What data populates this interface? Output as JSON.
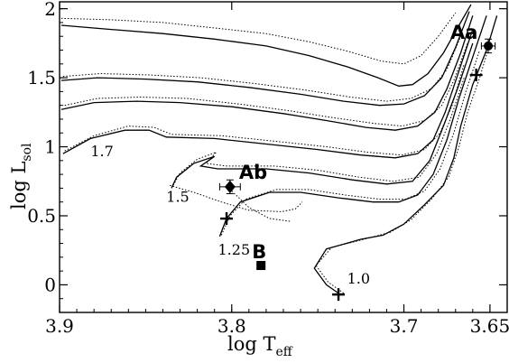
{
  "chart_data": {
    "type": "line",
    "title": "",
    "xlabel": {
      "main": "log T",
      "sub": "eff"
    },
    "ylabel": {
      "main": "log L",
      "sub": "sol"
    },
    "xlim": [
      3.9,
      3.64
    ],
    "ylim": [
      -0.2,
      2.05
    ],
    "x_ticks": [
      {
        "value": 3.9,
        "label": "3.9"
      },
      {
        "value": 3.8,
        "label": "3.8"
      },
      {
        "value": 3.7,
        "label": "3.7"
      },
      {
        "value": 3.65,
        "label": "3.65"
      }
    ],
    "y_ticks": [
      {
        "value": 0,
        "label": "0"
      },
      {
        "value": 0.5,
        "label": "0.5"
      },
      {
        "value": 1,
        "label": "1"
      },
      {
        "value": 1.5,
        "label": "1.5"
      },
      {
        "value": 2,
        "label": "2"
      }
    ],
    "grid": false,
    "tracks": [
      {
        "mass": "1.0",
        "style": "solid",
        "points": [
          [
            3.737,
            -0.07
          ],
          [
            3.745,
            0.0
          ],
          [
            3.752,
            0.12
          ],
          [
            3.745,
            0.26
          ],
          [
            3.725,
            0.33
          ],
          [
            3.712,
            0.36
          ],
          [
            3.7,
            0.44
          ],
          [
            3.688,
            0.58
          ],
          [
            3.677,
            0.72
          ],
          [
            3.671,
            0.92
          ],
          [
            3.667,
            1.15
          ],
          [
            3.66,
            1.45
          ],
          [
            3.652,
            1.7
          ],
          [
            3.646,
            1.95
          ]
        ]
      },
      {
        "mass": "1.0",
        "style": "dotted",
        "points": [
          [
            3.735,
            -0.06
          ],
          [
            3.744,
            0.02
          ],
          [
            3.751,
            0.14
          ],
          [
            3.742,
            0.27
          ],
          [
            3.72,
            0.34
          ],
          [
            3.708,
            0.38
          ],
          [
            3.696,
            0.47
          ],
          [
            3.684,
            0.62
          ],
          [
            3.674,
            0.78
          ],
          [
            3.668,
            1.0
          ],
          [
            3.663,
            1.25
          ],
          [
            3.656,
            1.5
          ],
          [
            3.65,
            1.75
          ]
        ]
      },
      {
        "mass": "1.25",
        "style": "solid",
        "points": [
          [
            3.807,
            0.35
          ],
          [
            3.803,
            0.48
          ],
          [
            3.795,
            0.6
          ],
          [
            3.778,
            0.67
          ],
          [
            3.76,
            0.67
          ],
          [
            3.738,
            0.63
          ],
          [
            3.718,
            0.6
          ],
          [
            3.703,
            0.6
          ],
          [
            3.692,
            0.65
          ],
          [
            3.683,
            0.8
          ],
          [
            3.675,
            1.05
          ],
          [
            3.668,
            1.35
          ],
          [
            3.66,
            1.65
          ],
          [
            3.652,
            1.95
          ]
        ]
      },
      {
        "mass": "1.25",
        "style": "dotted",
        "points": [
          [
            3.806,
            0.36
          ],
          [
            3.801,
            0.5
          ],
          [
            3.792,
            0.62
          ],
          [
            3.774,
            0.69
          ],
          [
            3.755,
            0.69
          ],
          [
            3.734,
            0.65
          ],
          [
            3.714,
            0.62
          ],
          [
            3.699,
            0.62
          ],
          [
            3.688,
            0.68
          ],
          [
            3.679,
            0.84
          ],
          [
            3.671,
            1.1
          ],
          [
            3.664,
            1.4
          ],
          [
            3.656,
            1.7
          ]
        ]
      },
      {
        "mass": "1.5",
        "style": "solid",
        "points": [
          [
            3.835,
            0.7
          ],
          [
            3.832,
            0.78
          ],
          [
            3.822,
            0.88
          ],
          [
            3.81,
            0.93
          ],
          [
            3.818,
            0.86
          ],
          [
            3.808,
            0.84
          ],
          [
            3.78,
            0.84
          ],
          [
            3.755,
            0.81
          ],
          [
            3.73,
            0.76
          ],
          [
            3.71,
            0.73
          ],
          [
            3.695,
            0.75
          ],
          [
            3.685,
            0.9
          ],
          [
            3.677,
            1.15
          ],
          [
            3.668,
            1.45
          ],
          [
            3.66,
            1.75
          ]
        ]
      },
      {
        "mass": "1.5",
        "style": "dotted",
        "points": [
          [
            3.834,
            0.72
          ],
          [
            3.83,
            0.81
          ],
          [
            3.82,
            0.91
          ],
          [
            3.809,
            0.96
          ],
          [
            3.815,
            0.88
          ],
          [
            3.803,
            0.86
          ],
          [
            3.775,
            0.86
          ],
          [
            3.75,
            0.83
          ],
          [
            3.726,
            0.78
          ],
          [
            3.706,
            0.75
          ],
          [
            3.691,
            0.78
          ],
          [
            3.681,
            0.95
          ],
          [
            3.673,
            1.2
          ],
          [
            3.665,
            1.5
          ]
        ]
      },
      {
        "mass": "1.7",
        "style": "solid",
        "points": [
          [
            3.898,
            0.95
          ],
          [
            3.882,
            1.06
          ],
          [
            3.862,
            1.12
          ],
          [
            3.848,
            1.12
          ],
          [
            3.838,
            1.07
          ],
          [
            3.81,
            1.06
          ],
          [
            3.78,
            1.02
          ],
          [
            3.75,
            0.98
          ],
          [
            3.725,
            0.94
          ],
          [
            3.705,
            0.92
          ],
          [
            3.692,
            0.95
          ],
          [
            3.683,
            1.05
          ],
          [
            3.676,
            1.25
          ],
          [
            3.668,
            1.55
          ],
          [
            3.66,
            1.85
          ]
        ]
      },
      {
        "mass": "1.7",
        "style": "dotted",
        "points": [
          [
            3.897,
            0.97
          ],
          [
            3.88,
            1.08
          ],
          [
            3.86,
            1.15
          ],
          [
            3.845,
            1.14
          ],
          [
            3.835,
            1.09
          ],
          [
            3.806,
            1.08
          ],
          [
            3.775,
            1.04
          ],
          [
            3.745,
            1.0
          ],
          [
            3.721,
            0.96
          ],
          [
            3.701,
            0.94
          ],
          [
            3.688,
            0.98
          ],
          [
            3.679,
            1.1
          ],
          [
            3.672,
            1.3
          ],
          [
            3.665,
            1.6
          ]
        ]
      },
      {
        "mass": "",
        "style": "solid",
        "points": [
          [
            3.899,
            1.27
          ],
          [
            3.88,
            1.32
          ],
          [
            3.855,
            1.33
          ],
          [
            3.83,
            1.32
          ],
          [
            3.8,
            1.29
          ],
          [
            3.77,
            1.24
          ],
          [
            3.745,
            1.19
          ],
          [
            3.722,
            1.14
          ],
          [
            3.705,
            1.12
          ],
          [
            3.692,
            1.15
          ],
          [
            3.682,
            1.25
          ],
          [
            3.675,
            1.42
          ],
          [
            3.667,
            1.68
          ],
          [
            3.66,
            1.95
          ]
        ]
      },
      {
        "mass": "",
        "style": "dotted",
        "points": [
          [
            3.897,
            1.3
          ],
          [
            3.878,
            1.35
          ],
          [
            3.853,
            1.36
          ],
          [
            3.826,
            1.35
          ],
          [
            3.796,
            1.31
          ],
          [
            3.766,
            1.26
          ],
          [
            3.741,
            1.21
          ],
          [
            3.718,
            1.17
          ],
          [
            3.701,
            1.15
          ],
          [
            3.688,
            1.19
          ],
          [
            3.678,
            1.3
          ],
          [
            3.671,
            1.48
          ],
          [
            3.663,
            1.75
          ]
        ]
      },
      {
        "mass": "",
        "style": "solid",
        "points": [
          [
            3.899,
            1.48
          ],
          [
            3.878,
            1.5
          ],
          [
            3.85,
            1.49
          ],
          [
            3.82,
            1.47
          ],
          [
            3.79,
            1.43
          ],
          [
            3.76,
            1.38
          ],
          [
            3.735,
            1.33
          ],
          [
            3.714,
            1.3
          ],
          [
            3.7,
            1.31
          ],
          [
            3.688,
            1.37
          ],
          [
            3.678,
            1.5
          ],
          [
            3.67,
            1.72
          ],
          [
            3.662,
            1.98
          ]
        ]
      },
      {
        "mass": "",
        "style": "dotted",
        "points": [
          [
            3.898,
            1.51
          ],
          [
            3.876,
            1.53
          ],
          [
            3.848,
            1.52
          ],
          [
            3.818,
            1.5
          ],
          [
            3.788,
            1.46
          ],
          [
            3.757,
            1.41
          ],
          [
            3.731,
            1.36
          ],
          [
            3.71,
            1.33
          ],
          [
            3.696,
            1.35
          ],
          [
            3.684,
            1.42
          ],
          [
            3.675,
            1.56
          ],
          [
            3.667,
            1.8
          ]
        ]
      },
      {
        "mass": "",
        "style": "solid",
        "points": [
          [
            3.899,
            1.88
          ],
          [
            3.87,
            1.85
          ],
          [
            3.84,
            1.82
          ],
          [
            3.81,
            1.78
          ],
          [
            3.78,
            1.73
          ],
          [
            3.755,
            1.66
          ],
          [
            3.733,
            1.58
          ],
          [
            3.715,
            1.5
          ],
          [
            3.703,
            1.44
          ],
          [
            3.695,
            1.45
          ],
          [
            3.686,
            1.53
          ],
          [
            3.677,
            1.68
          ],
          [
            3.668,
            1.88
          ],
          [
            3.661,
            2.03
          ]
        ]
      },
      {
        "mass": "",
        "style": "dotted",
        "points": [
          [
            3.899,
            1.93
          ],
          [
            3.87,
            1.92
          ],
          [
            3.84,
            1.9
          ],
          [
            3.81,
            1.86
          ],
          [
            3.78,
            1.82
          ],
          [
            3.755,
            1.76
          ],
          [
            3.732,
            1.69
          ],
          [
            3.713,
            1.62
          ],
          [
            3.7,
            1.6
          ],
          [
            3.69,
            1.66
          ],
          [
            3.68,
            1.8
          ],
          [
            3.67,
            1.97
          ]
        ]
      }
    ],
    "iso_lines": [
      [
        [
          3.836,
          0.72
        ],
        [
          3.822,
          0.67
        ],
        [
          3.806,
          0.6
        ],
        [
          3.79,
          0.54
        ],
        [
          3.771,
          0.53
        ],
        [
          3.763,
          0.55
        ],
        [
          3.759,
          0.6
        ]
      ],
      [
        [
          3.8,
          0.68
        ],
        [
          3.79,
          0.56
        ],
        [
          3.778,
          0.48
        ],
        [
          3.766,
          0.46
        ]
      ]
    ],
    "points": [
      {
        "label": "Aa",
        "x": 3.651,
        "y": 1.73,
        "marker": "circle",
        "xerr": 0.004,
        "yerr": 0.05
      },
      {
        "label": "Ab",
        "x": 3.801,
        "y": 0.71,
        "marker": "diamond",
        "xerr": 0.006,
        "yerr": 0.05
      },
      {
        "label": "B",
        "x": 3.783,
        "y": 0.14,
        "marker": "square",
        "xerr": 0,
        "yerr": 0
      }
    ],
    "crosses": [
      [
        3.658,
        1.52
      ],
      [
        3.803,
        0.48
      ],
      [
        3.738,
        -0.07
      ]
    ],
    "mass_labels": [
      {
        "text": "1.7",
        "x": 3.882,
        "y": 0.93
      },
      {
        "text": "1.5",
        "x": 3.838,
        "y": 0.6
      },
      {
        "text": "1.25",
        "x": 3.808,
        "y": 0.22
      },
      {
        "text": "1.0",
        "x": 3.733,
        "y": 0.01
      }
    ]
  }
}
